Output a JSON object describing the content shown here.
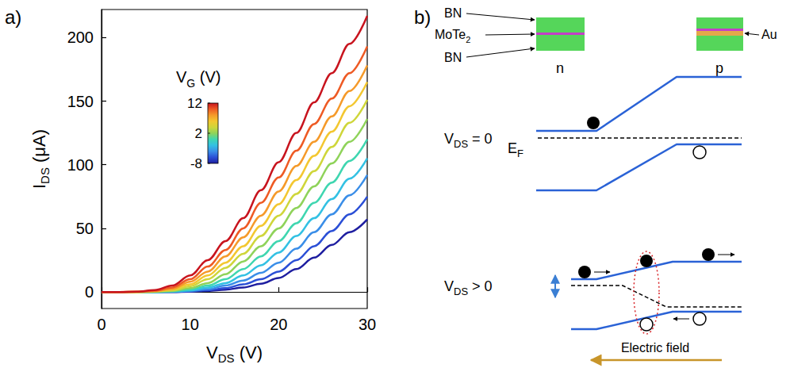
{
  "chart_data": {
    "type": "line",
    "panel_label": "a)",
    "xlabel": [
      {
        "t": "V"
      },
      {
        "t": "DS",
        "sub": true
      },
      {
        "t": " (V)"
      }
    ],
    "ylabel": [
      {
        "t": "I"
      },
      {
        "t": "DS",
        "sub": true
      },
      {
        "t": " (μA)"
      }
    ],
    "x": [
      0,
      2,
      4,
      6,
      8,
      10,
      12,
      14,
      16,
      18,
      20,
      22,
      24,
      26,
      28,
      30
    ],
    "xlim": [
      0,
      30
    ],
    "xticks": [
      0,
      10,
      20,
      30
    ],
    "ylim": [
      -13,
      222
    ],
    "yticks": [
      0,
      50,
      100,
      150,
      200
    ],
    "grid": false,
    "series": [
      {
        "gate_voltage": -8,
        "color": "#1e1ea0",
        "values": [
          0,
          0,
          0,
          0,
          0,
          0.3,
          0.8,
          1.8,
          3.5,
          6.5,
          11,
          18,
          27,
          37,
          47,
          57
        ]
      },
      {
        "gate_voltage": -6,
        "color": "#2b4fd6",
        "values": [
          0,
          0,
          0,
          0,
          0.1,
          0.5,
          1.4,
          3,
          6,
          10,
          16,
          25,
          36,
          48,
          61,
          75
        ]
      },
      {
        "gate_voltage": -4,
        "color": "#3a8ee8",
        "values": [
          0,
          0,
          0,
          0,
          0.2,
          0.8,
          2.2,
          5,
          9,
          15,
          23,
          34,
          47,
          61,
          76,
          92
        ]
      },
      {
        "gate_voltage": -2,
        "color": "#33c1e3",
        "values": [
          0,
          0,
          0,
          0,
          0.3,
          1.2,
          3.5,
          7,
          13,
          21,
          31,
          44,
          58,
          73,
          89,
          105
        ]
      },
      {
        "gate_voltage": 0,
        "color": "#3fd6b0",
        "values": [
          0,
          0,
          0,
          0,
          0.5,
          2,
          5,
          10,
          18,
          28,
          40,
          54,
          70,
          86,
          103,
          120
        ]
      },
      {
        "gate_voltage": 2,
        "color": "#8fd35a",
        "values": [
          0,
          0,
          0,
          0.2,
          0.9,
          3,
          7,
          14,
          24,
          36,
          50,
          66,
          83,
          101,
          118,
          136
        ]
      },
      {
        "gate_voltage": 4,
        "color": "#cfd63a",
        "values": [
          0,
          0,
          0,
          0.3,
          1.3,
          4.5,
          10,
          19,
          30,
          44,
          60,
          77,
          95,
          114,
          133,
          151
        ]
      },
      {
        "gate_voltage": 6,
        "color": "#f3c730",
        "values": [
          0,
          0,
          0,
          0.5,
          2,
          6,
          13,
          23,
          36,
          52,
          69,
          88,
          107,
          126,
          146,
          165
        ]
      },
      {
        "gate_voltage": 8,
        "color": "#f59a2a",
        "values": [
          0,
          0,
          0.1,
          0.7,
          2.5,
          8,
          16,
          28,
          43,
          60,
          79,
          99,
          118,
          138,
          158,
          178
        ]
      },
      {
        "gate_voltage": 10,
        "color": "#ee5a24",
        "values": [
          0,
          0,
          0.2,
          1,
          3.5,
          10,
          20,
          33,
          50,
          70,
          90,
          111,
          132,
          152,
          172,
          193
        ]
      },
      {
        "gate_voltage": 12,
        "color": "#c8141e",
        "values": [
          0,
          0,
          0.3,
          1.5,
          5,
          13,
          25,
          40,
          58,
          80,
          102,
          125,
          149,
          172,
          195,
          217
        ]
      }
    ],
    "colorbar": {
      "title": [
        {
          "t": "V"
        },
        {
          "t": "G",
          "sub": true
        },
        {
          "t": " (V)"
        }
      ],
      "range": [
        -8,
        12
      ],
      "ticks": [
        -8,
        2,
        12
      ]
    }
  },
  "diagram": {
    "panel_label": "b)",
    "stack_labels": {
      "top": "BN",
      "middle": [
        {
          "t": "MoTe"
        },
        {
          "t": "2",
          "sub": true
        }
      ],
      "bottom": "BN",
      "metal": "Au"
    },
    "stacks": [
      {
        "label": "n"
      },
      {
        "label": "p"
      }
    ],
    "fermi_label": [
      {
        "t": "E"
      },
      {
        "t": "F",
        "sub": true
      }
    ],
    "states": [
      {
        "label": [
          {
            "t": "V"
          },
          {
            "t": "DS",
            "sub": true
          },
          {
            "t": " = 0"
          }
        ]
      },
      {
        "label": [
          {
            "t": "V"
          },
          {
            "t": "DS",
            "sub": true
          },
          {
            "t": " > 0"
          }
        ]
      }
    ],
    "field_label": "Electric field"
  }
}
